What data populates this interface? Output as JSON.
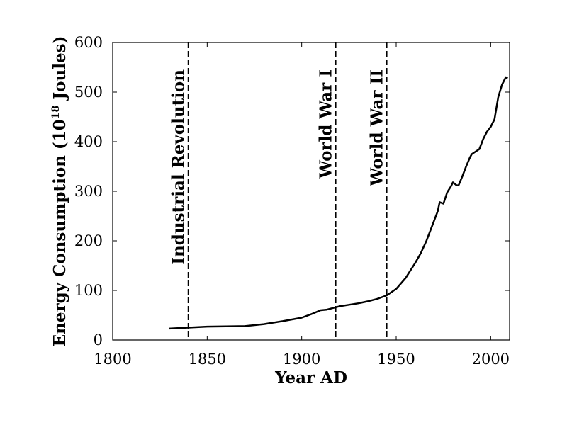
{
  "chart_data": {
    "type": "line",
    "title": "",
    "xlabel": "Year AD",
    "ylabel": {
      "prefix": "Energy Consumption (10",
      "superscript": "18",
      "suffix": " Joules)"
    },
    "xlim": [
      1800,
      2010
    ],
    "ylim": [
      0,
      600
    ],
    "xticks": [
      1800,
      1850,
      1900,
      1950,
      2000
    ],
    "yticks": [
      0,
      100,
      200,
      300,
      400,
      500,
      600
    ],
    "grid": false,
    "legend": "none",
    "line_color": "#000000",
    "series": [
      {
        "x": [
          1830,
          1840,
          1850,
          1860,
          1870,
          1880,
          1890,
          1900,
          1905,
          1910,
          1913,
          1915,
          1920,
          1925,
          1930,
          1935,
          1940,
          1945,
          1950,
          1955,
          1960,
          1963,
          1966,
          1969,
          1972,
          1973,
          1975,
          1977,
          1979,
          1980,
          1982,
          1983,
          1985,
          1987,
          1989,
          1990,
          1992,
          1994,
          1996,
          1998,
          2000,
          2002,
          2004,
          2006,
          2008,
          2009
        ],
        "y": [
          23,
          25,
          27,
          27.5,
          28,
          32,
          38,
          45,
          52,
          60,
          61,
          63,
          68,
          71,
          74,
          78,
          83,
          90,
          103,
          125,
          155,
          175,
          200,
          230,
          260,
          278,
          275,
          298,
          310,
          318,
          312,
          312,
          330,
          350,
          368,
          375,
          380,
          385,
          405,
          420,
          430,
          445,
          490,
          515,
          530,
          528
        ]
      }
    ],
    "annotations": [
      {
        "label": "Industrial Revolution",
        "x": 1840
      },
      {
        "label": "World War I",
        "x": 1918
      },
      {
        "label": "World War II",
        "x": 1945
      }
    ]
  }
}
